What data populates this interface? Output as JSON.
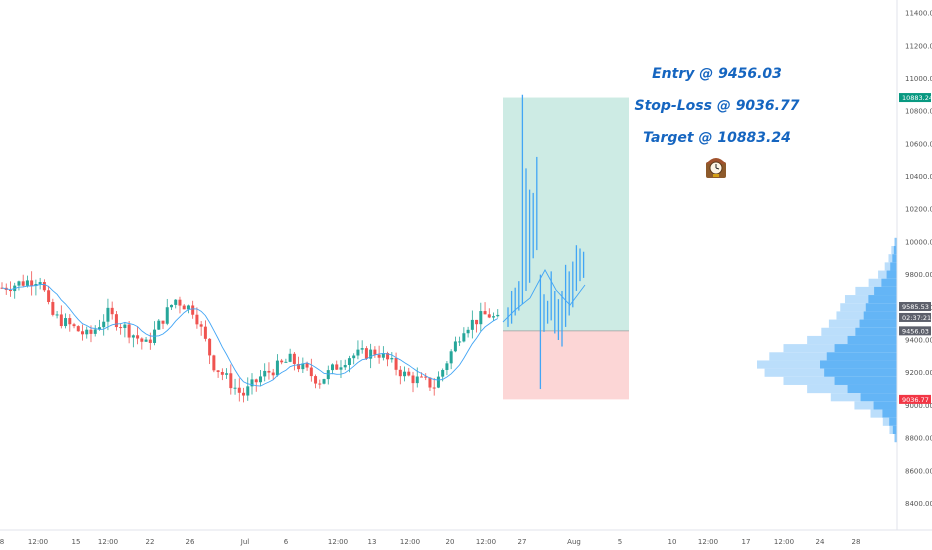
{
  "chart_data": {
    "type": "candlestick",
    "title": "",
    "xlabel": "",
    "ylabel": "",
    "ylim": [
      8250,
      11480
    ],
    "y_ticks": [
      "11400.00",
      "11200.00",
      "11000.00",
      "10800.00",
      "10600.00",
      "10400.00",
      "10200.00",
      "10000.00",
      "9800.00",
      "9600.00",
      "9400.00",
      "9200.00",
      "9000.00",
      "8800.00",
      "8600.00",
      "8400.00"
    ],
    "x_ticks": [
      "8",
      "12:00",
      "15",
      "12:00",
      "22",
      "26",
      "Jul",
      "6",
      "12:00",
      "13",
      "12:00",
      "20",
      "12:00",
      "27",
      "Aug",
      "5",
      "10",
      "12:00",
      "17",
      "12:00",
      "24",
      "28"
    ],
    "price_tags": [
      {
        "label": "10883.24",
        "value": 10883.24,
        "color": "#089981"
      },
      {
        "label": "9585.53",
        "value": 9605,
        "color": "#5d606b"
      },
      {
        "label": "02:37:21",
        "value": 9538,
        "color": "#5d606b"
      },
      {
        "label": "9456.03",
        "value": 9456.03,
        "color": "#5d606b"
      },
      {
        "label": "9036.77",
        "value": 9036.77,
        "color": "#f23645"
      }
    ],
    "annotations": [
      "Entry @ 9456.03",
      "Stop-Loss @ 9036.77",
      "Target @ 10883.24"
    ],
    "position": {
      "entry": 9456.03,
      "stop": 9036.77,
      "target": 10883.24,
      "start": 96,
      "end": 120
    },
    "colors": {
      "up": "#26a69a",
      "down": "#ef5350",
      "ma": "#42a5f5",
      "forecast": "#42a5f5",
      "profit_zone": "#cdebe4",
      "loss_zone": "#fcd6d6",
      "profile_light": "#bbdefb",
      "profile_dark": "#64b5f6"
    },
    "volume_profile": {
      "prices": [
        10000,
        9950,
        9900,
        9850,
        9800,
        9750,
        9700,
        9650,
        9600,
        9550,
        9500,
        9450,
        9400,
        9350,
        9300,
        9250,
        9200,
        9150,
        9100,
        9050,
        9000,
        8950,
        8900,
        8850,
        8800
      ],
      "volumes": [
        3,
        6,
        9,
        13,
        20,
        30,
        44,
        55,
        60,
        64,
        72,
        80,
        95,
        120,
        135,
        148,
        140,
        120,
        95,
        70,
        45,
        28,
        15,
        8,
        3
      ]
    }
  }
}
